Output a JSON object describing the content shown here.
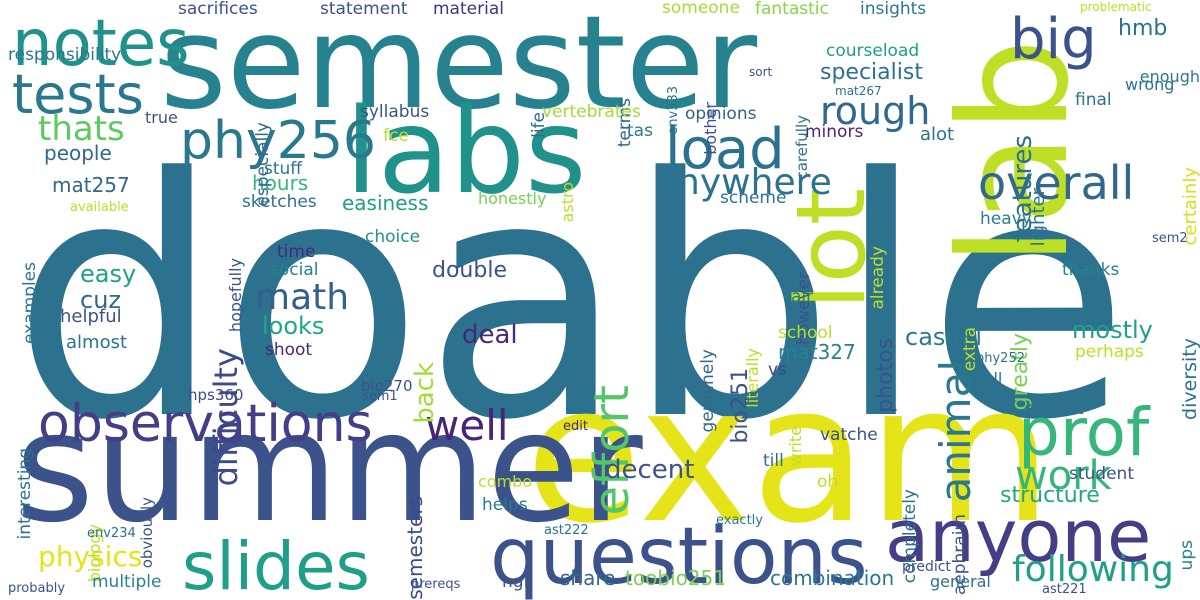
{
  "cloud": {
    "background": "#ffffff",
    "words": [
      {
        "text": "doable",
        "color": "#2c728e",
        "vertical": false
      },
      {
        "text": "semester",
        "color": "#26828e",
        "vertical": false
      },
      {
        "text": "exam",
        "color": "#e5e419",
        "vertical": false
      },
      {
        "text": "summer",
        "color": "#3b528b",
        "vertical": false
      },
      {
        "text": "lab",
        "color": "#bddf26",
        "vertical": true
      },
      {
        "text": "labs",
        "color": "#21918c",
        "vertical": false
      },
      {
        "text": "lot",
        "color": "#bddf26",
        "vertical": true
      },
      {
        "text": "questions",
        "color": "#3b528b",
        "vertical": false
      },
      {
        "text": "anyone",
        "color": "#433e85",
        "vertical": false
      },
      {
        "text": "prof",
        "color": "#35b779",
        "vertical": false
      },
      {
        "text": "slides",
        "color": "#1f9e89",
        "vertical": false
      },
      {
        "text": "observations",
        "color": "#433e85",
        "vertical": false
      },
      {
        "text": "notes",
        "color": "#21918c",
        "vertical": false
      },
      {
        "text": "tests",
        "color": "#2a788e",
        "vertical": false
      },
      {
        "text": "phy256",
        "color": "#2a788e",
        "vertical": false
      },
      {
        "text": "big",
        "color": "#3b528b",
        "vertical": false
      },
      {
        "text": "load",
        "color": "#2c728e",
        "vertical": false
      },
      {
        "text": "overall",
        "color": "#31688e",
        "vertical": false
      },
      {
        "text": "effort",
        "color": "#54c568",
        "vertical": true
      },
      {
        "text": "animal",
        "color": "#2a788e",
        "vertical": true
      },
      {
        "text": "anywhere",
        "color": "#2c728e",
        "vertical": false
      },
      {
        "text": "rough",
        "color": "#31688e",
        "vertical": false
      },
      {
        "text": "math",
        "color": "#355f8d",
        "vertical": false
      },
      {
        "text": "difficulty",
        "color": "#3e4989",
        "vertical": true
      },
      {
        "text": "well",
        "color": "#482576",
        "vertical": false
      },
      {
        "text": "work",
        "color": "#35b779",
        "vertical": false
      },
      {
        "text": "following",
        "color": "#1fa188",
        "vertical": false
      },
      {
        "text": "structure",
        "color": "#22a785",
        "vertical": false
      },
      {
        "text": "casual",
        "color": "#2a788e",
        "vertical": false
      },
      {
        "text": "mostly",
        "color": "#1fa188",
        "vertical": false
      },
      {
        "text": "physics",
        "color": "#e5e419",
        "vertical": false
      },
      {
        "text": "decent",
        "color": "#3b528b",
        "vertical": false
      },
      {
        "text": "deal",
        "color": "#482878",
        "vertical": false
      },
      {
        "text": "back",
        "color": "#a5db36",
        "vertical": true
      },
      {
        "text": "thats",
        "color": "#5ec962",
        "vertical": false
      },
      {
        "text": "specialist",
        "color": "#2c728e",
        "vertical": false
      },
      {
        "text": "features",
        "color": "#2c728e",
        "vertical": true
      },
      {
        "text": "double",
        "color": "#3b528b",
        "vertical": false
      },
      {
        "text": "looks",
        "color": "#22a785",
        "vertical": false
      },
      {
        "text": "easy",
        "color": "#1fa188",
        "vertical": false
      },
      {
        "text": "cuz",
        "color": "#31688e",
        "vertical": false
      },
      {
        "text": "helpful",
        "color": "#3b528b",
        "vertical": false
      },
      {
        "text": "almost",
        "color": "#2c728e",
        "vertical": false
      },
      {
        "text": "mat257",
        "color": "#31688e",
        "vertical": false
      },
      {
        "text": "mat327",
        "color": "#26828e",
        "vertical": false
      },
      {
        "text": "people",
        "color": "#31688e",
        "vertical": false
      },
      {
        "text": "hours",
        "color": "#35b779",
        "vertical": false
      },
      {
        "text": "easiness",
        "color": "#1f9e89",
        "vertical": false
      },
      {
        "text": "semesters",
        "color": "#3e4989",
        "vertical": true
      },
      {
        "text": "combination",
        "color": "#2a788e",
        "vertical": false
      },
      {
        "text": "share",
        "color": "#31688e",
        "vertical": false
      },
      {
        "text": "toobio251",
        "color": "#7ad151",
        "vertical": false
      },
      {
        "text": "bio251",
        "color": "#3b528b",
        "vertical": true
      },
      {
        "text": "photos",
        "color": "#3b528b",
        "vertical": true
      },
      {
        "text": "greatly",
        "color": "#7ad151",
        "vertical": true
      },
      {
        "text": "hmb",
        "color": "#2c728e",
        "vertical": false
      },
      {
        "text": "responsibility",
        "color": "#2a788e",
        "vertical": false
      },
      {
        "text": "sacrifices",
        "color": "#3b528b",
        "vertical": false
      },
      {
        "text": "statement",
        "color": "#3b528b",
        "vertical": false
      },
      {
        "text": "material",
        "color": "#46337e",
        "vertical": false
      },
      {
        "text": "someone",
        "color": "#a5db36",
        "vertical": false
      },
      {
        "text": "fantastic",
        "color": "#86d549",
        "vertical": false
      },
      {
        "text": "insights",
        "color": "#2a788e",
        "vertical": false
      },
      {
        "text": "life",
        "color": "#31688e",
        "vertical": true
      },
      {
        "text": "courseload",
        "color": "#1f9e89",
        "vertical": false
      },
      {
        "text": "wrong",
        "color": "#2c728e",
        "vertical": false
      },
      {
        "text": "enough",
        "color": "#2a788e",
        "vertical": false
      },
      {
        "text": "terms",
        "color": "#31688e",
        "vertical": true
      },
      {
        "text": "syllabus",
        "color": "#3b528b",
        "vertical": false
      },
      {
        "text": "opinions",
        "color": "#355f8d",
        "vertical": false
      },
      {
        "text": "vertebrates",
        "color": "#a5db36",
        "vertical": false
      },
      {
        "text": "minors",
        "color": "#482878",
        "vertical": false
      },
      {
        "text": "lighter",
        "color": "#2c728e",
        "vertical": true
      },
      {
        "text": "final",
        "color": "#2c728e",
        "vertical": false
      },
      {
        "text": "certainly",
        "color": "#d2e21b",
        "vertical": true
      },
      {
        "text": "alot",
        "color": "#2c728e",
        "vertical": false
      },
      {
        "text": "tas",
        "color": "#2a788e",
        "vertical": false
      },
      {
        "text": "true",
        "color": "#3b528b",
        "vertical": false
      },
      {
        "text": "especially",
        "color": "#31688e",
        "vertical": true
      },
      {
        "text": "fce",
        "color": "#bddf26",
        "vertical": false
      },
      {
        "text": "astro",
        "color": "#bddf26",
        "vertical": true
      },
      {
        "text": "stuff",
        "color": "#2a788e",
        "vertical": false
      },
      {
        "text": "sketches",
        "color": "#2c728e",
        "vertical": false
      },
      {
        "text": "honestly",
        "color": "#7ad151",
        "vertical": false
      },
      {
        "text": "scheme",
        "color": "#2c728e",
        "vertical": false
      },
      {
        "text": "heavy",
        "color": "#26828e",
        "vertical": false
      },
      {
        "text": "choice",
        "color": "#21918c",
        "vertical": false
      },
      {
        "text": "hopefully",
        "color": "#3b528b",
        "vertical": true
      },
      {
        "text": "time",
        "color": "#482878",
        "vertical": false
      },
      {
        "text": "social",
        "color": "#26828e",
        "vertical": false
      },
      {
        "text": "examples",
        "color": "#2a788e",
        "vertical": true
      },
      {
        "text": "available",
        "color": "#bddf26",
        "vertical": false
      },
      {
        "text": "already",
        "color": "#bddf26",
        "vertical": true
      },
      {
        "text": "however",
        "color": "#3b528b",
        "vertical": true
      },
      {
        "text": "thanks",
        "color": "#26828e",
        "vertical": false
      },
      {
        "text": "sem2",
        "color": "#3b528b",
        "vertical": false
      },
      {
        "text": "genuinely",
        "color": "#31688e",
        "vertical": true
      },
      {
        "text": "literally",
        "color": "#bddf26",
        "vertical": true
      },
      {
        "text": "fair",
        "color": "#2a788e",
        "vertical": false
      },
      {
        "text": "extra",
        "color": "#bddf26",
        "vertical": true
      },
      {
        "text": "school",
        "color": "#bddf26",
        "vertical": false
      },
      {
        "text": "shoot",
        "color": "#482878",
        "vertical": false
      },
      {
        "text": "diversity",
        "color": "#2c728e",
        "vertical": true
      },
      {
        "text": "perhaps",
        "color": "#bddf26",
        "vertical": false
      },
      {
        "text": "phy252",
        "color": "#2c728e",
        "vertical": false
      },
      {
        "text": "interesting",
        "color": "#2c728e",
        "vertical": true
      },
      {
        "text": "bio270",
        "color": "#3b528b",
        "vertical": false
      },
      {
        "text": "sem1",
        "color": "#3b528b",
        "vertical": false
      },
      {
        "text": "vs",
        "color": "#3e4989",
        "vertical": false
      },
      {
        "text": "hps360",
        "color": "#3e4989",
        "vertical": false
      },
      {
        "text": "fall",
        "color": "#2c728e",
        "vertical": false
      },
      {
        "text": "correct",
        "color": "#2c728e",
        "vertical": false
      },
      {
        "text": "write",
        "color": "#bddf26",
        "vertical": true
      },
      {
        "text": "vatche",
        "color": "#3b528b",
        "vertical": false
      },
      {
        "text": "edit",
        "color": "#482878",
        "vertical": false
      },
      {
        "text": "till",
        "color": "#2c728e",
        "vertical": false
      },
      {
        "text": "completely",
        "color": "#2c728e",
        "vertical": true
      },
      {
        "text": "obviously",
        "color": "#3b528b",
        "vertical": true
      },
      {
        "text": "oh",
        "color": "#bddf26",
        "vertical": false
      },
      {
        "text": "student",
        "color": "#3b528b",
        "vertical": false
      },
      {
        "text": "aephraim",
        "color": "#3b528b",
        "vertical": true
      },
      {
        "text": "combo",
        "color": "#bddf26",
        "vertical": false
      },
      {
        "text": "biology",
        "color": "#bddf26",
        "vertical": true
      },
      {
        "text": "helps",
        "color": "#2a788e",
        "vertical": false
      },
      {
        "text": "ast222",
        "color": "#2c728e",
        "vertical": false
      },
      {
        "text": "ups",
        "color": "#26828e",
        "vertical": true
      },
      {
        "text": "env234",
        "color": "#2c728e",
        "vertical": false
      },
      {
        "text": "exactly",
        "color": "#2a788e",
        "vertical": false
      },
      {
        "text": "multiple",
        "color": "#26828e",
        "vertical": false
      },
      {
        "text": "ngl",
        "color": "#3b528b",
        "vertical": false
      },
      {
        "text": "predict",
        "color": "#3b528b",
        "vertical": false
      },
      {
        "text": "general",
        "color": "#2c728e",
        "vertical": false
      },
      {
        "text": "probably",
        "color": "#3b528b",
        "vertical": false
      },
      {
        "text": "prereqs",
        "color": "#3b528b",
        "vertical": false
      },
      {
        "text": "ast221",
        "color": "#3b528b",
        "vertical": false
      },
      {
        "text": "problematic",
        "color": "#bddf26",
        "vertical": false
      },
      {
        "text": "bother",
        "color": "#3b528b",
        "vertical": true
      },
      {
        "text": "carefully",
        "color": "#2c728e",
        "vertical": true
      },
      {
        "text": "env333",
        "color": "#2c728e",
        "vertical": true
      },
      {
        "text": "sort",
        "color": "#3b528b",
        "vertical": false
      },
      {
        "text": "mat267",
        "color": "#2c728e",
        "vertical": false
      }
    ]
  }
}
